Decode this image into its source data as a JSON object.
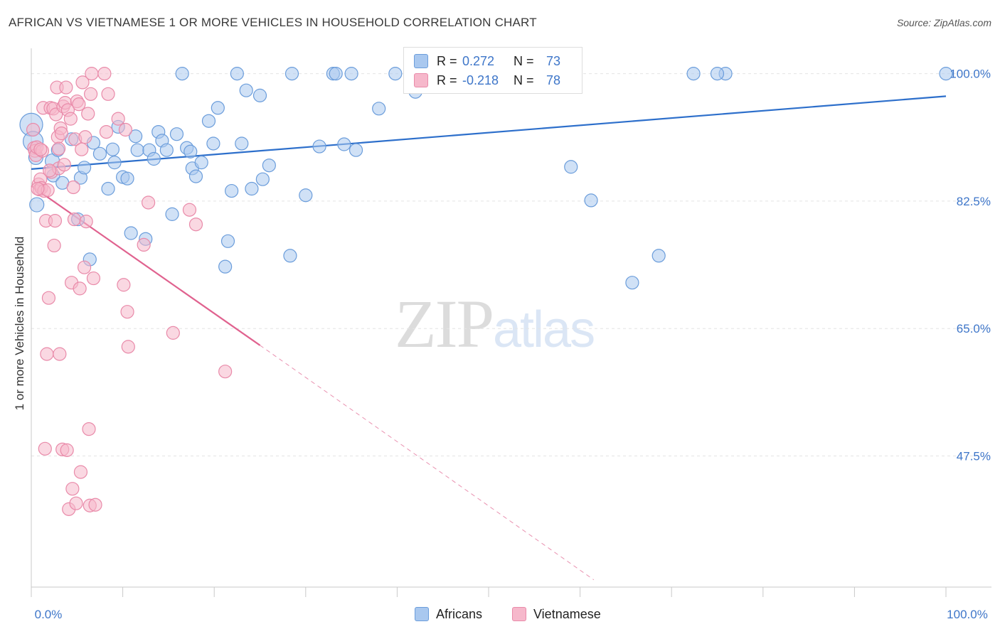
{
  "header": {
    "title": "AFRICAN VS VIETNAMESE 1 OR MORE VEHICLES IN HOUSEHOLD CORRELATION CHART",
    "source": "Source: ZipAtlas.com"
  },
  "watermark": {
    "zip": "ZIP",
    "atlas": "atlas"
  },
  "legend": {
    "africans": {
      "r_label": "R =",
      "r_value": "0.272",
      "n_label": "N =",
      "n_value": "73"
    },
    "vietnamese": {
      "r_label": "R =",
      "r_value": "-0.218",
      "n_label": "N =",
      "n_value": "78"
    }
  },
  "bottom_legend": {
    "africans": "Africans",
    "vietnamese": "Vietnamese"
  },
  "colors": {
    "africans_fill": "#a9c8ef",
    "africans_stroke": "#6b9ddb",
    "africans_line": "#2d6fcb",
    "vietnamese_fill": "#f6b8cb",
    "vietnamese_stroke": "#e98aa9",
    "vietnamese_line": "#e0628f",
    "tick_text": "#3e76c9",
    "grid": "#e4e4e4"
  },
  "chart_data": {
    "type": "scatter",
    "title": "AFRICAN VS VIETNAMESE 1 OR MORE VEHICLES IN HOUSEHOLD CORRELATION CHART",
    "ylabel": "1 or more Vehicles in Household",
    "xlabel": "",
    "x_tick_labels": [
      "0.0%",
      "100.0%"
    ],
    "y_tick_labels": [
      "100.0%",
      "82.5%",
      "65.0%",
      "47.5%"
    ],
    "y_ticks": [
      100.0,
      82.5,
      65.0,
      47.5
    ],
    "xlim": [
      0,
      100
    ],
    "ylim": [
      29.5,
      102.5
    ],
    "grid": true,
    "legend_position": "top-center",
    "series": [
      {
        "name": "Africans",
        "r": 0.272,
        "n": 73,
        "trend": {
          "x": [
            0,
            100
          ],
          "y": [
            86.9,
            96.9
          ],
          "dashed_from": null
        },
        "points": [
          [
            0.0,
            93.0,
            16
          ],
          [
            0.2,
            90.7,
            14
          ],
          [
            0.5,
            88.5,
            10
          ],
          [
            0.6,
            82.0,
            10
          ],
          [
            2.3,
            88.0,
            10
          ],
          [
            2.4,
            86.0,
            9
          ],
          [
            2.9,
            89.5,
            9
          ],
          [
            3.4,
            85.0,
            9
          ],
          [
            4.4,
            91.0,
            9
          ],
          [
            5.1,
            80.0,
            9
          ],
          [
            5.4,
            85.7,
            9
          ],
          [
            5.8,
            87.1,
            9
          ],
          [
            6.4,
            74.5,
            9
          ],
          [
            6.8,
            90.5,
            9
          ],
          [
            7.5,
            89.0,
            9
          ],
          [
            8.4,
            84.2,
            9
          ],
          [
            8.9,
            89.6,
            9
          ],
          [
            9.1,
            87.8,
            9
          ],
          [
            9.5,
            92.7,
            9
          ],
          [
            10.0,
            85.8,
            9
          ],
          [
            10.5,
            85.6,
            9
          ],
          [
            10.9,
            78.1,
            9
          ],
          [
            11.4,
            91.4,
            9
          ],
          [
            11.6,
            89.5,
            9
          ],
          [
            12.5,
            77.3,
            9
          ],
          [
            12.9,
            89.5,
            9
          ],
          [
            13.4,
            88.3,
            9
          ],
          [
            13.9,
            92.0,
            9
          ],
          [
            14.3,
            90.8,
            9
          ],
          [
            14.8,
            89.5,
            9
          ],
          [
            15.4,
            80.7,
            9
          ],
          [
            15.9,
            91.7,
            9
          ],
          [
            16.5,
            100.0,
            9
          ],
          [
            17.0,
            89.8,
            9
          ],
          [
            17.4,
            89.3,
            9
          ],
          [
            17.6,
            87.0,
            9
          ],
          [
            18.0,
            85.9,
            9
          ],
          [
            18.6,
            87.8,
            9
          ],
          [
            19.4,
            93.5,
            9
          ],
          [
            19.9,
            90.4,
            9
          ],
          [
            20.4,
            95.3,
            9
          ],
          [
            21.2,
            73.5,
            9
          ],
          [
            21.5,
            77.0,
            9
          ],
          [
            21.9,
            83.9,
            9
          ],
          [
            22.5,
            100.0,
            9
          ],
          [
            23.0,
            90.4,
            9
          ],
          [
            23.5,
            97.7,
            9
          ],
          [
            24.1,
            84.2,
            9
          ],
          [
            25.0,
            97.0,
            9
          ],
          [
            25.3,
            85.5,
            9
          ],
          [
            26.0,
            87.4,
            9
          ],
          [
            28.3,
            75.0,
            9
          ],
          [
            28.5,
            100.0,
            9
          ],
          [
            30.0,
            83.3,
            9
          ],
          [
            31.5,
            90.0,
            9
          ],
          [
            33.0,
            100.0,
            9
          ],
          [
            33.3,
            100.0,
            9
          ],
          [
            34.2,
            90.3,
            9
          ],
          [
            35.0,
            100.0,
            9
          ],
          [
            35.5,
            89.5,
            9
          ],
          [
            38.0,
            95.2,
            9
          ],
          [
            39.8,
            100.0,
            9
          ],
          [
            42.0,
            97.5,
            9
          ],
          [
            43.3,
            100.0,
            9
          ],
          [
            58.3,
            100.0,
            9
          ],
          [
            59.0,
            87.2,
            9
          ],
          [
            61.2,
            82.6,
            9
          ],
          [
            65.7,
            71.3,
            9
          ],
          [
            68.6,
            75.0,
            9
          ],
          [
            72.4,
            100.0,
            9
          ],
          [
            75.9,
            100.0,
            9
          ],
          [
            100.0,
            100.0,
            9
          ],
          [
            75.0,
            100.0,
            9
          ]
        ]
      },
      {
        "name": "Vietnamese",
        "r": -0.218,
        "n": 78,
        "trend": {
          "x": [
            0,
            25,
            61.5
          ],
          "y": [
            84.6,
            62.7,
            30.5
          ],
          "dashed_from": 25
        },
        "points": [
          [
            0.2,
            92.3,
            9
          ],
          [
            0.3,
            89.8,
            9
          ],
          [
            0.4,
            89.4,
            9
          ],
          [
            0.5,
            88.8,
            9
          ],
          [
            0.6,
            89.9,
            9
          ],
          [
            0.8,
            84.8,
            9
          ],
          [
            0.9,
            84.1,
            9
          ],
          [
            1.0,
            85.5,
            9
          ],
          [
            1.1,
            84.3,
            9
          ],
          [
            1.2,
            89.4,
            9
          ],
          [
            1.4,
            83.9,
            9
          ],
          [
            1.3,
            95.3,
            9
          ],
          [
            1.5,
            48.5,
            9
          ],
          [
            1.6,
            79.8,
            9
          ],
          [
            1.7,
            61.5,
            9
          ],
          [
            1.8,
            84.0,
            9
          ],
          [
            1.9,
            69.2,
            9
          ],
          [
            2.1,
            95.3,
            9
          ],
          [
            2.2,
            86.5,
            9
          ],
          [
            2.4,
            95.2,
            9
          ],
          [
            2.5,
            76.4,
            9
          ],
          [
            2.6,
            79.8,
            9
          ],
          [
            2.7,
            94.4,
            9
          ],
          [
            2.8,
            98.1,
            9
          ],
          [
            2.9,
            91.3,
            9
          ],
          [
            3.0,
            87.0,
            9
          ],
          [
            3.1,
            61.5,
            9
          ],
          [
            3.2,
            92.5,
            9
          ],
          [
            3.3,
            91.8,
            9
          ],
          [
            3.4,
            48.4,
            9
          ],
          [
            3.5,
            95.5,
            9
          ],
          [
            3.6,
            87.5,
            9
          ],
          [
            3.7,
            96.0,
            9
          ],
          [
            3.8,
            98.1,
            9
          ],
          [
            3.9,
            48.3,
            9
          ],
          [
            4.0,
            95.0,
            9
          ],
          [
            4.1,
            40.2,
            9
          ],
          [
            4.3,
            93.8,
            9
          ],
          [
            4.4,
            71.3,
            9
          ],
          [
            4.5,
            43.0,
            9
          ],
          [
            4.6,
            84.4,
            9
          ],
          [
            4.7,
            80.0,
            9
          ],
          [
            4.8,
            91.0,
            9
          ],
          [
            4.9,
            41.0,
            9
          ],
          [
            5.0,
            96.2,
            9
          ],
          [
            5.2,
            95.8,
            9
          ],
          [
            5.3,
            70.5,
            9
          ],
          [
            5.4,
            45.3,
            9
          ],
          [
            5.5,
            89.6,
            9
          ],
          [
            5.6,
            98.8,
            9
          ],
          [
            5.8,
            73.4,
            9
          ],
          [
            5.9,
            91.3,
            9
          ],
          [
            6.0,
            79.7,
            9
          ],
          [
            6.2,
            94.5,
            9
          ],
          [
            6.3,
            51.2,
            9
          ],
          [
            6.4,
            40.7,
            9
          ],
          [
            6.5,
            97.2,
            9
          ],
          [
            6.6,
            100.0,
            9
          ],
          [
            6.8,
            71.9,
            9
          ],
          [
            7.0,
            40.8,
            9
          ],
          [
            8.0,
            100.0,
            9
          ],
          [
            8.2,
            92.0,
            9
          ],
          [
            8.4,
            97.2,
            9
          ],
          [
            9.5,
            93.8,
            9
          ],
          [
            10.1,
            71.0,
            9
          ],
          [
            10.3,
            92.3,
            9
          ],
          [
            10.5,
            67.3,
            9
          ],
          [
            10.6,
            62.5,
            9
          ],
          [
            12.3,
            76.5,
            9
          ],
          [
            12.8,
            82.3,
            9
          ],
          [
            15.5,
            64.4,
            9
          ],
          [
            17.3,
            81.3,
            9
          ],
          [
            18.0,
            79.3,
            9
          ],
          [
            21.2,
            59.1,
            9
          ],
          [
            1.0,
            89.6,
            9
          ],
          [
            0.7,
            84.2,
            9
          ],
          [
            2.0,
            86.7,
            9
          ],
          [
            3.0,
            89.7,
            9
          ]
        ]
      }
    ]
  }
}
